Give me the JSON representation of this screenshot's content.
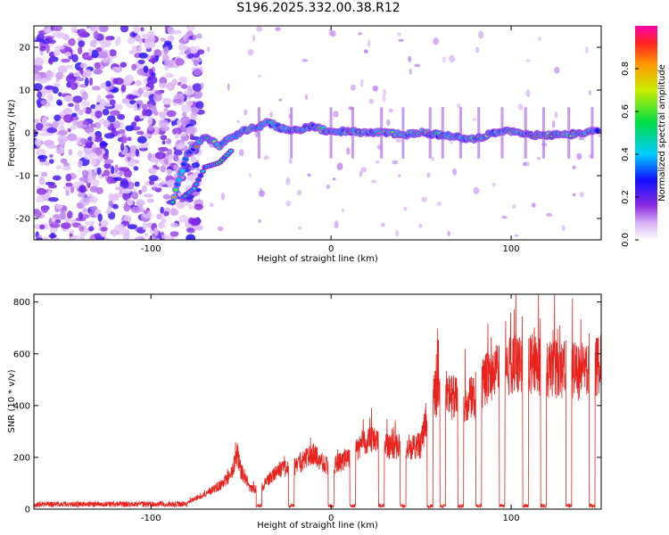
{
  "title": "S196.2025.332.00.38.R12",
  "colors": {
    "snr_line": "#e8221d",
    "axis": "#000000"
  },
  "colorbar": {
    "label": "Normalized spectral amplitude",
    "ticks": [
      "0.0",
      "0.2",
      "0.4",
      "0.6",
      "0.8"
    ],
    "tick_values": [
      0.0,
      0.2,
      0.4,
      0.6,
      0.8
    ],
    "range": [
      0,
      1
    ]
  },
  "chart_data": [
    {
      "type": "heatmap",
      "title": "S196.2025.332.00.38.R12",
      "xlabel": "Height of straight line (km)",
      "ylabel": "Frequency (Hz)",
      "xlim": [
        -165,
        150
      ],
      "ylim": [
        -25,
        25
      ],
      "x_ticks": [
        -100,
        0,
        100
      ],
      "x_tick_labels": [
        "-100",
        "0",
        "100"
      ],
      "y_ticks": [
        20,
        10,
        0,
        -10,
        -20
      ],
      "y_tick_labels": [
        "20",
        "10",
        "0",
        "-10",
        "-20"
      ],
      "ridge": {
        "x": [
          -88,
          -80,
          -75,
          -70,
          -62,
          -55,
          -48,
          -40,
          -35,
          -28,
          -20,
          -10,
          0,
          10,
          20,
          30,
          40,
          50,
          60,
          70,
          80,
          90,
          100,
          110,
          120,
          130,
          140,
          148
        ],
        "freq": [
          -16,
          -5,
          -3,
          -1,
          -3,
          -1,
          0.5,
          1.5,
          2.5,
          1,
          0.5,
          1.5,
          0,
          0.5,
          0,
          0,
          -0.5,
          0,
          -0.5,
          -1,
          -1.5,
          0,
          0.5,
          -0.5,
          -0.5,
          -0.5,
          0,
          0.5
        ]
      },
      "secondary_branch": {
        "x": [
          -82,
          -76,
          -70,
          -62,
          -55
        ],
        "freq": [
          -15,
          -13,
          -8,
          -7,
          -4
        ]
      },
      "noise_region_x": [
        -165,
        -80
      ]
    },
    {
      "type": "line",
      "title": "",
      "xlabel": "Height of straight line (km)",
      "ylabel": "SNR (10 * v/v)",
      "xlim": [
        -165,
        150
      ],
      "ylim": [
        0,
        830
      ],
      "x_ticks": [
        -100,
        0,
        100
      ],
      "x_tick_labels": [
        "-100",
        "0",
        "100"
      ],
      "y_ticks": [
        0,
        200,
        400,
        600,
        800
      ],
      "y_tick_labels": [
        "0",
        "200",
        "400",
        "600",
        "800"
      ],
      "envelope": {
        "x": [
          -165,
          -100,
          -80,
          -70,
          -60,
          -55,
          -52,
          -50,
          -45,
          -40,
          -30,
          -20,
          -10,
          0,
          10,
          20,
          30,
          40,
          50,
          55,
          60,
          70,
          80,
          85,
          90,
          100,
          110,
          120,
          130,
          140,
          150
        ],
        "y": [
          20,
          22,
          30,
          70,
          120,
          170,
          260,
          180,
          100,
          90,
          180,
          200,
          260,
          190,
          250,
          330,
          300,
          290,
          300,
          520,
          560,
          510,
          530,
          600,
          640,
          680,
          690,
          660,
          660,
          640,
          680
        ]
      },
      "dropouts_x": [
        -40,
        -22,
        0,
        12,
        28,
        40,
        55,
        62,
        72,
        82,
        95,
        108,
        118,
        132,
        145
      ]
    }
  ]
}
